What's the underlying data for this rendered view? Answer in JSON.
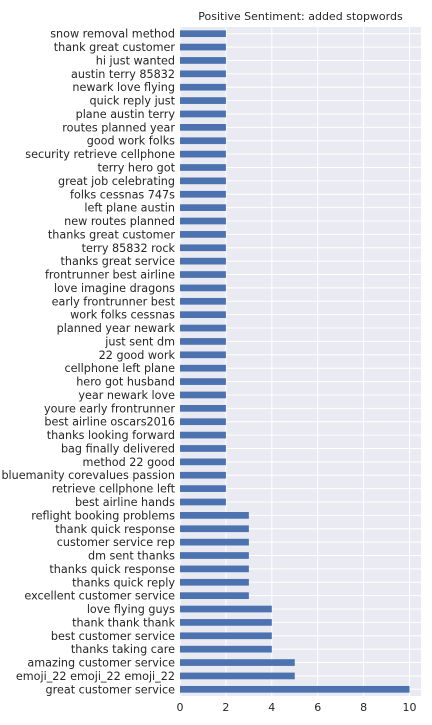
{
  "chart_data": {
    "type": "bar",
    "orientation": "horizontal",
    "title": "Positive Sentiment: added stopwords",
    "xlabel": "",
    "ylabel": "",
    "xlim": [
      0,
      10.5
    ],
    "xticks": [
      0,
      2,
      4,
      6,
      8,
      10
    ],
    "grid": true,
    "bar_color": "#4c72b0",
    "background_color": "#eaeaf2",
    "grid_color": "#ffffff",
    "categories": [
      "snow removal method",
      "thank great customer",
      "hi just wanted",
      "austin terry 85832",
      "newark love flying",
      "quick reply just",
      "plane austin terry",
      "routes planned year",
      "good work folks",
      "security retrieve cellphone",
      "terry hero got",
      "great job celebrating",
      "folks cessnas 747s",
      "left plane austin",
      "new routes planned",
      "thanks great customer",
      "terry 85832 rock",
      "thanks great service",
      "frontrunner best airline",
      "love imagine dragons",
      "early frontrunner best",
      "work folks cessnas",
      "planned year newark",
      "just sent dm",
      "22 good work",
      "cellphone left plane",
      "hero got husband",
      "year newark love",
      "youre early frontrunner",
      "best airline oscars2016",
      "thanks looking forward",
      "bag finally delivered",
      "method 22 good",
      "bluemanity corevalues passion",
      "retrieve cellphone left",
      "best airline hands",
      "reflight booking problems",
      "thank quick response",
      "customer service rep",
      "dm sent thanks",
      "thanks quick response",
      "thanks quick reply",
      "excellent customer service",
      "love flying guys",
      "thank thank thank",
      "best customer service",
      "thanks taking care",
      "amazing customer service",
      "emoji_22 emoji_22 emoji_22",
      "great customer service"
    ],
    "values": [
      2,
      2,
      2,
      2,
      2,
      2,
      2,
      2,
      2,
      2,
      2,
      2,
      2,
      2,
      2,
      2,
      2,
      2,
      2,
      2,
      2,
      2,
      2,
      2,
      2,
      2,
      2,
      2,
      2,
      2,
      2,
      2,
      2,
      2,
      2,
      2,
      3,
      3,
      3,
      3,
      3,
      3,
      3,
      4,
      4,
      4,
      4,
      5,
      5,
      10
    ]
  }
}
